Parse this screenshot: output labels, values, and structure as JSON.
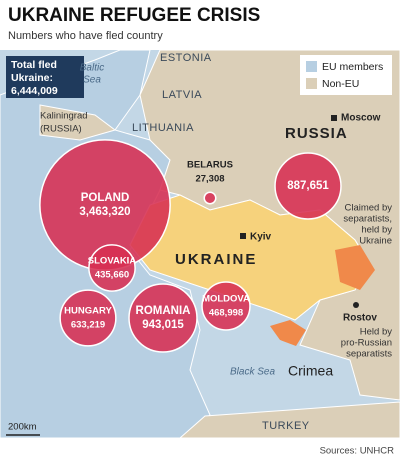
{
  "header": {
    "title": "UKRAINE REFUGEE CRISIS",
    "subtitle": "Numbers who have fled country"
  },
  "total": {
    "caption": [
      "Total fled",
      "Ukraine:"
    ],
    "amount": "6,444,009"
  },
  "legend": [
    "EU members",
    "Non-EU"
  ],
  "bubbles": [
    {
      "name": "POLAND",
      "value": 3463320,
      "label": "3,463,320"
    },
    {
      "name": "SLOVAKIA",
      "value": 435660,
      "label": "435,660"
    },
    {
      "name": "HUNGARY",
      "value": 633219,
      "label": "633,219"
    },
    {
      "name": "ROMANIA",
      "value": 943015,
      "label": "943,015"
    },
    {
      "name": "MOLDOVA",
      "value": 468998,
      "label": "468,998"
    },
    {
      "value": 887651,
      "label": "887,651"
    },
    {
      "name": "BELARUS",
      "value": 27308,
      "label": "27,308"
    }
  ],
  "places": {
    "estonia": "ESTONIA",
    "baltic_sea": [
      "Baltic",
      "Sea"
    ],
    "latvia": "LATVIA",
    "kaliningrad": [
      "Kaliningrad",
      "(RUSSIA)"
    ],
    "lithuania": "LITHUANIA",
    "russia": "RUSSIA",
    "moscow": "Moscow",
    "kyiv": "Kyiv",
    "ukraine": "UKRAINE",
    "rostov": "Rostov",
    "crimea": "Crimea",
    "black_sea": "Black Sea",
    "turkey": "TURKEY"
  },
  "annotations": {
    "claimed": [
      "Claimed by",
      "separatists,",
      "held by",
      "Ukraine"
    ],
    "held": [
      "Held by",
      "pro-Russian",
      "separatists"
    ]
  },
  "scale": "200km",
  "source": "Sources: UNHCR"
}
